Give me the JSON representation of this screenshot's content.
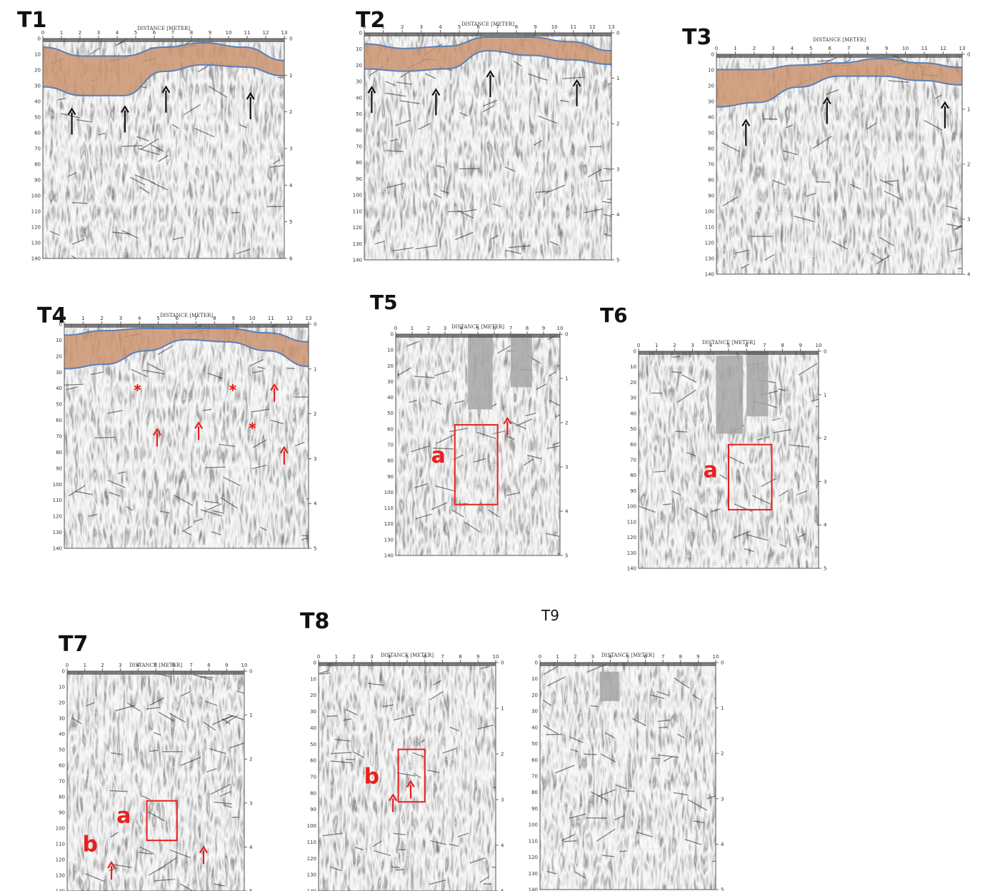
{
  "figure": {
    "panels": [
      {
        "id": "T1",
        "title": "T1",
        "axis_title": "DISTANCE [METER]",
        "x_ticks": [
          "0",
          "1",
          "2",
          "3",
          "4",
          "5",
          "6",
          "7",
          "8",
          "9",
          "10",
          "11",
          "12",
          "13"
        ],
        "y_ticks_left": [
          "0",
          "10",
          "20",
          "30",
          "40",
          "50",
          "60",
          "70",
          "80",
          "90",
          "100",
          "110",
          "120",
          "130",
          "140"
        ],
        "y_ticks_right": [
          "0",
          "1",
          "2",
          "3",
          "4",
          "5",
          "6"
        ],
        "layer": true,
        "annotations": []
      },
      {
        "id": "T2",
        "title": "T2",
        "axis_title": "DISTANCE [METER]",
        "x_ticks": [
          "0",
          "1",
          "2",
          "3",
          "4",
          "5",
          "6",
          "7",
          "8",
          "9",
          "10",
          "11",
          "12",
          "13"
        ],
        "y_ticks_left": [
          "0",
          "10",
          "20",
          "30",
          "40",
          "50",
          "60",
          "70",
          "80",
          "90",
          "100",
          "110",
          "120",
          "130",
          "140"
        ],
        "y_ticks_right": [
          "0",
          "1",
          "2",
          "3",
          "4",
          "5"
        ],
        "layer": true,
        "annotations": []
      },
      {
        "id": "T3",
        "title": "T3",
        "axis_title": "DISTANCE [METER]",
        "x_ticks": [
          "0",
          "1",
          "2",
          "3",
          "4",
          "5",
          "6",
          "7",
          "8",
          "9",
          "10",
          "11",
          "12",
          "13"
        ],
        "y_ticks_left": [
          "0",
          "10",
          "20",
          "30",
          "40",
          "50",
          "60",
          "70",
          "80",
          "90",
          "100",
          "110",
          "120",
          "130",
          "140"
        ],
        "y_ticks_right": [
          "0",
          "1",
          "2",
          "3",
          "4"
        ],
        "layer": true,
        "annotations": []
      },
      {
        "id": "T4",
        "title": "T4",
        "axis_title": "DISTANCE [METER]",
        "x_ticks": [
          "0",
          "1",
          "2",
          "3",
          "4",
          "5",
          "6",
          "7",
          "8",
          "9",
          "10",
          "11",
          "12",
          "13"
        ],
        "y_ticks_left": [
          "0",
          "10",
          "20",
          "30",
          "40",
          "50",
          "60",
          "70",
          "80",
          "90",
          "100",
          "110",
          "120",
          "130",
          "140"
        ],
        "y_ticks_right": [
          "0",
          "1",
          "2",
          "3",
          "4",
          "5"
        ],
        "layer": true,
        "annotations": []
      },
      {
        "id": "T5",
        "title": "T5",
        "axis_title": "DISTANCE [METER]",
        "x_ticks": [
          "0",
          "1",
          "2",
          "3",
          "4",
          "5",
          "6",
          "7",
          "8",
          "9",
          "10"
        ],
        "y_ticks_left": [
          "0",
          "10",
          "20",
          "30",
          "40",
          "50",
          "60",
          "70",
          "80",
          "90",
          "100",
          "110",
          "120",
          "130",
          "140"
        ],
        "y_ticks_right": [
          "0",
          "1",
          "2",
          "3",
          "4",
          "5"
        ],
        "layer": false,
        "annotations": [
          "a"
        ]
      },
      {
        "id": "T6",
        "title": "T6",
        "axis_title": "DISTANCE [METER]",
        "x_ticks": [
          "0",
          "1",
          "2",
          "3",
          "4",
          "5",
          "6",
          "7",
          "8",
          "9",
          "10"
        ],
        "y_ticks_left": [
          "0",
          "10",
          "20",
          "30",
          "40",
          "50",
          "60",
          "70",
          "80",
          "90",
          "100",
          "110",
          "120",
          "130",
          "140"
        ],
        "y_ticks_right": [
          "0",
          "1",
          "2",
          "3",
          "4",
          "5"
        ],
        "layer": false,
        "annotations": [
          "a"
        ]
      },
      {
        "id": "T7",
        "title": "T7",
        "axis_title": "DISTANCE [METER]",
        "x_ticks": [
          "0",
          "1",
          "2",
          "3",
          "4",
          "5",
          "6",
          "7",
          "8",
          "9",
          "10"
        ],
        "y_ticks_left": [
          "0",
          "10",
          "20",
          "30",
          "40",
          "50",
          "60",
          "70",
          "80",
          "90",
          "100",
          "110",
          "120",
          "130",
          "140"
        ],
        "y_ticks_right": [
          "0",
          "1",
          "2",
          "3",
          "4",
          "5"
        ],
        "layer": false,
        "annotations": [
          "a",
          "b"
        ]
      },
      {
        "id": "T8",
        "title": "T8",
        "axis_title": "DISTANCE [METER]",
        "x_ticks": [
          "0",
          "1",
          "2",
          "3",
          "4",
          "5",
          "6",
          "7",
          "8",
          "9",
          "10"
        ],
        "y_ticks_left": [
          "0",
          "10",
          "20",
          "30",
          "40",
          "50",
          "60",
          "70",
          "80",
          "90",
          "100",
          "110",
          "120",
          "130",
          "140"
        ],
        "y_ticks_right": [
          "0",
          "1",
          "2",
          "3",
          "4",
          "5"
        ],
        "layer": false,
        "annotations": [
          "b"
        ]
      },
      {
        "id": "T9",
        "title": "T9",
        "axis_title": "DISTANCE [METER]",
        "x_ticks": [
          "0",
          "1",
          "2",
          "3",
          "4",
          "5",
          "6",
          "7",
          "8",
          "9",
          "10"
        ],
        "y_ticks_left": [
          "0",
          "10",
          "20",
          "30",
          "40",
          "50",
          "60",
          "70",
          "80",
          "90",
          "100",
          "110",
          "120",
          "130",
          "140"
        ],
        "y_ticks_right": [
          "0",
          "1",
          "2",
          "3",
          "4",
          "5"
        ],
        "layer": false,
        "annotations": []
      }
    ],
    "colors": {
      "layer_fill": "#c9906b",
      "layer_boundary": "#5b7fb5",
      "annotation_red": "#e8201e",
      "arrow_black": "#111111",
      "radar_light": "#e6e6e6",
      "radar_dark": "#2a2a2a"
    }
  }
}
